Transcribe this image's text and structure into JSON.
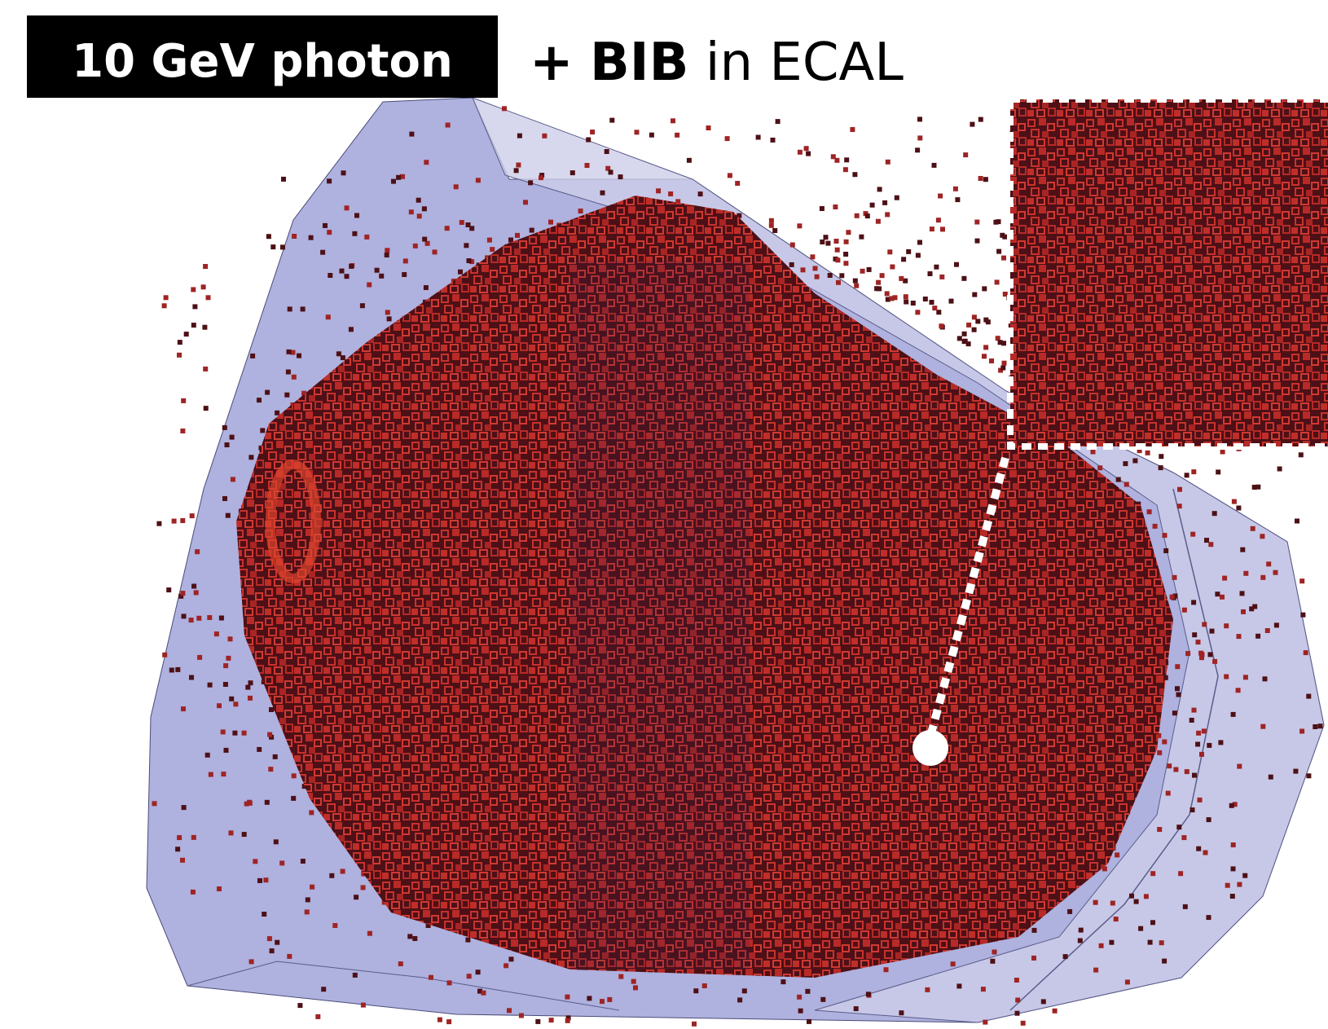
{
  "badge": "10 GeV photon",
  "caption": {
    "prefix": "+",
    "bold": "BIB",
    "rest": "in ECAL"
  }
}
